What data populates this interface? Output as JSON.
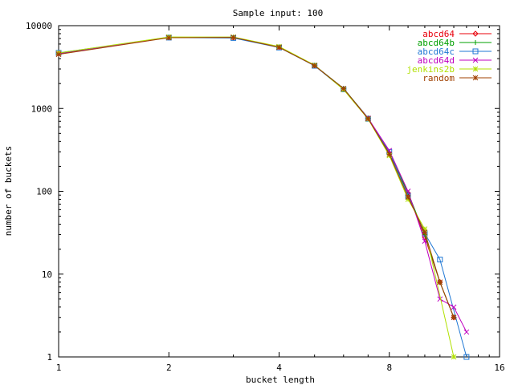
{
  "chart_data": {
    "type": "line",
    "title": "Sample input: 100",
    "xlabel": "bucket length",
    "ylabel": "number of buckets",
    "x_scale": "log2",
    "y_scale": "log10",
    "xlim": [
      1,
      16
    ],
    "ylim": [
      1,
      10000
    ],
    "x_ticks": [
      {
        "value": 1,
        "label": "1"
      },
      {
        "value": 2,
        "label": "2"
      },
      {
        "value": 4,
        "label": "4"
      },
      {
        "value": 8,
        "label": "8"
      },
      {
        "value": 16,
        "label": "16"
      }
    ],
    "y_ticks": [
      {
        "value": 1,
        "label": "1"
      },
      {
        "value": 10,
        "label": "10"
      },
      {
        "value": 100,
        "label": "100"
      },
      {
        "value": 1000,
        "label": "1000"
      },
      {
        "value": 10000,
        "label": "10000"
      }
    ],
    "grid": false,
    "legend_position": "top-right",
    "series": [
      {
        "name": "abcd64",
        "color": "#e8000b",
        "marker": "diamond",
        "x": [
          1,
          2,
          3,
          4,
          5,
          6,
          7,
          8,
          9,
          10,
          11,
          12
        ],
        "y": [
          4600,
          7200,
          7150,
          5500,
          3300,
          1720,
          760,
          285,
          95,
          28,
          8,
          3
        ]
      },
      {
        "name": "abcd64b",
        "color": "#00a000",
        "marker": "plus",
        "x": [
          1,
          2,
          3,
          4,
          5,
          6,
          7,
          8,
          9,
          10,
          11,
          12
        ],
        "y": [
          4650,
          7250,
          7200,
          5550,
          3320,
          1750,
          770,
          295,
          96,
          30,
          8,
          3
        ]
      },
      {
        "name": "abcd64c",
        "color": "#1f77d4",
        "marker": "square",
        "x": [
          1,
          2,
          3,
          4,
          5,
          6,
          7,
          8,
          9,
          10,
          11,
          13
        ],
        "y": [
          4700,
          7180,
          7100,
          5450,
          3280,
          1700,
          750,
          300,
          88,
          31,
          15,
          1
        ]
      },
      {
        "name": "abcd64d",
        "color": "#c000c0",
        "marker": "x",
        "x": [
          1,
          2,
          3,
          4,
          5,
          6,
          7,
          8,
          9,
          10,
          11,
          12,
          13
        ],
        "y": [
          4550,
          7220,
          7250,
          5520,
          3310,
          1730,
          765,
          310,
          100,
          25,
          5,
          4,
          2
        ]
      },
      {
        "name": "jenkins2b",
        "color": "#b0e000",
        "marker": "star",
        "x": [
          1,
          2,
          3,
          4,
          5,
          6,
          7,
          8,
          9,
          10,
          12
        ],
        "y": [
          4680,
          7300,
          7300,
          5600,
          3340,
          1690,
          745,
          270,
          80,
          35,
          1
        ]
      },
      {
        "name": "random",
        "color": "#a04000",
        "marker": "asterisk",
        "x": [
          1,
          2,
          3,
          4,
          5,
          6,
          7,
          8,
          9,
          10,
          11,
          12
        ],
        "y": [
          4500,
          7150,
          7220,
          5480,
          3290,
          1740,
          755,
          280,
          85,
          32,
          8,
          3
        ]
      }
    ]
  }
}
